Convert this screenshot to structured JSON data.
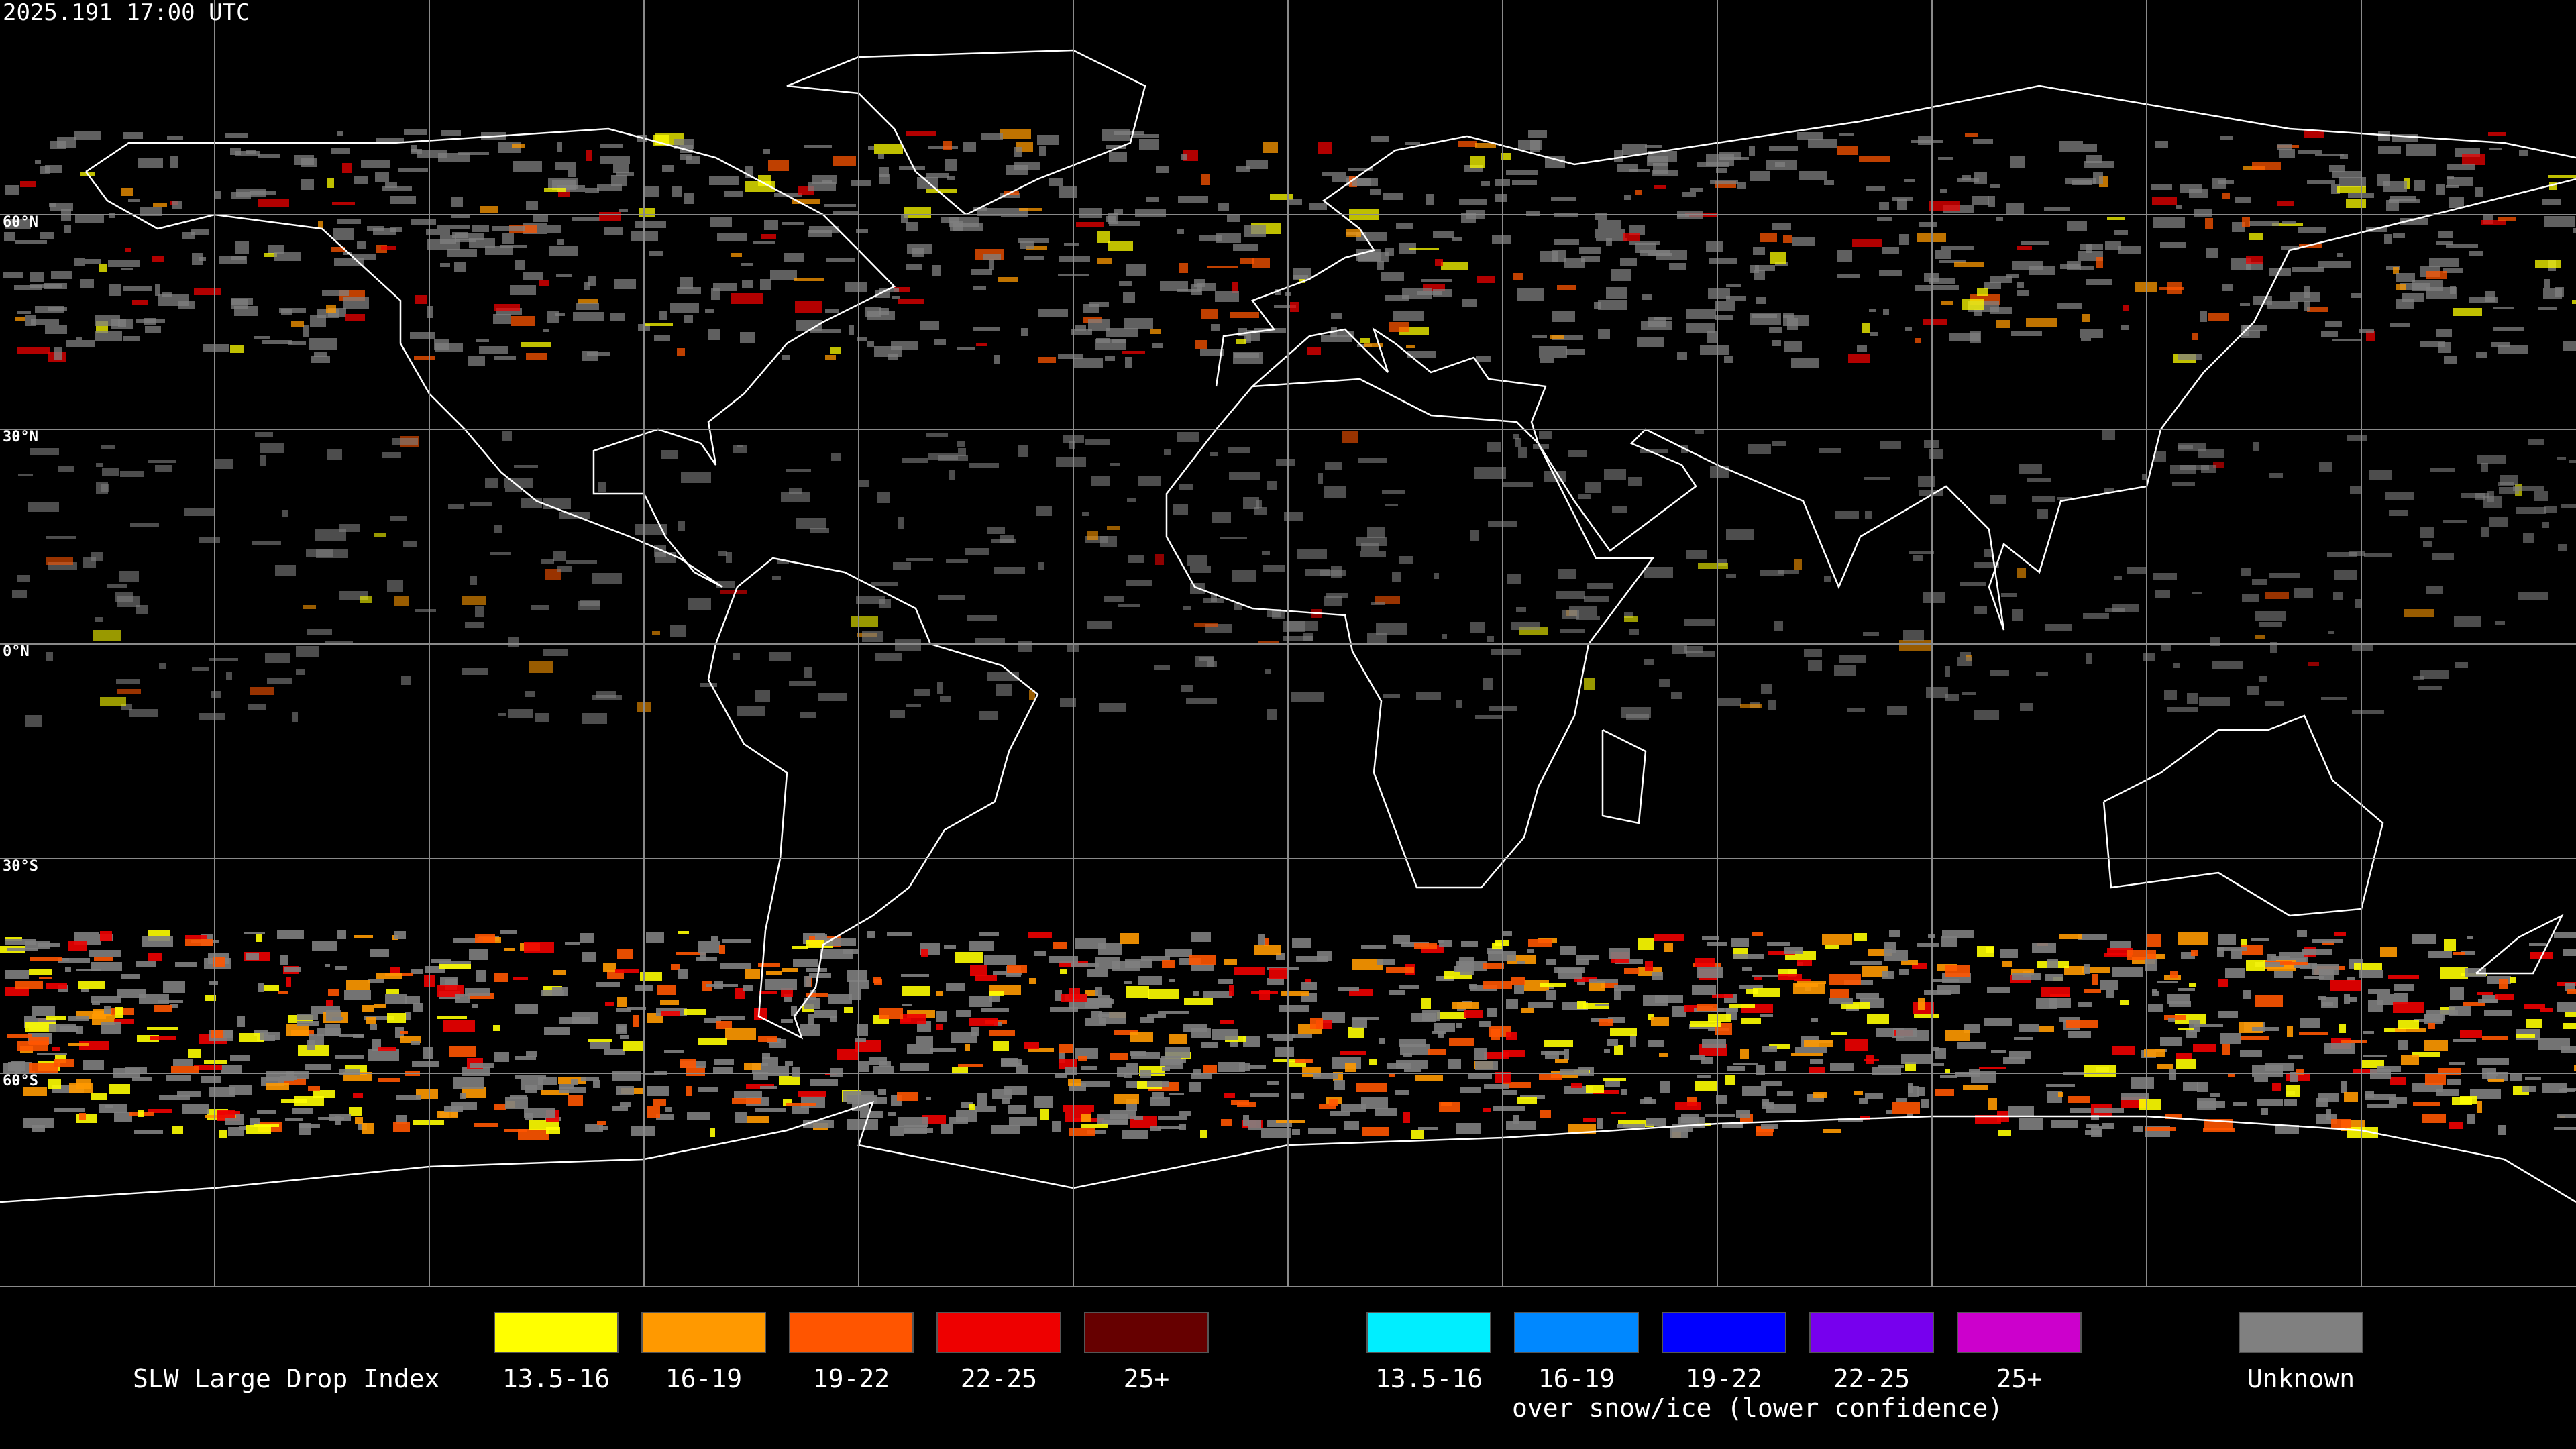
{
  "header": {
    "timestamp": "2025.191 17:00 UTC"
  },
  "map": {
    "lat_labels": [
      "60°N",
      "30°N",
      "0°N",
      "30°S",
      "60°S"
    ]
  },
  "legend": {
    "title": "SLW Large Drop Index",
    "main": [
      {
        "label": "13.5-16",
        "color": "#ffff00"
      },
      {
        "label": "16-19",
        "color": "#ff9900"
      },
      {
        "label": "19-22",
        "color": "#ff5500"
      },
      {
        "label": "22-25",
        "color": "#ee0000"
      },
      {
        "label": "25+",
        "color": "#660000"
      }
    ],
    "snow_ice": [
      {
        "label": "13.5-16",
        "color": "#00eeff"
      },
      {
        "label": "16-19",
        "color": "#0088ff"
      },
      {
        "label": "19-22",
        "color": "#0000ff"
      },
      {
        "label": "22-25",
        "color": "#7700ee"
      },
      {
        "label": "25+",
        "color": "#cc00cc"
      }
    ],
    "snow_ice_caption": "over snow/ice (lower confidence)",
    "unknown": {
      "label": "Unknown",
      "color": "#808080"
    }
  }
}
